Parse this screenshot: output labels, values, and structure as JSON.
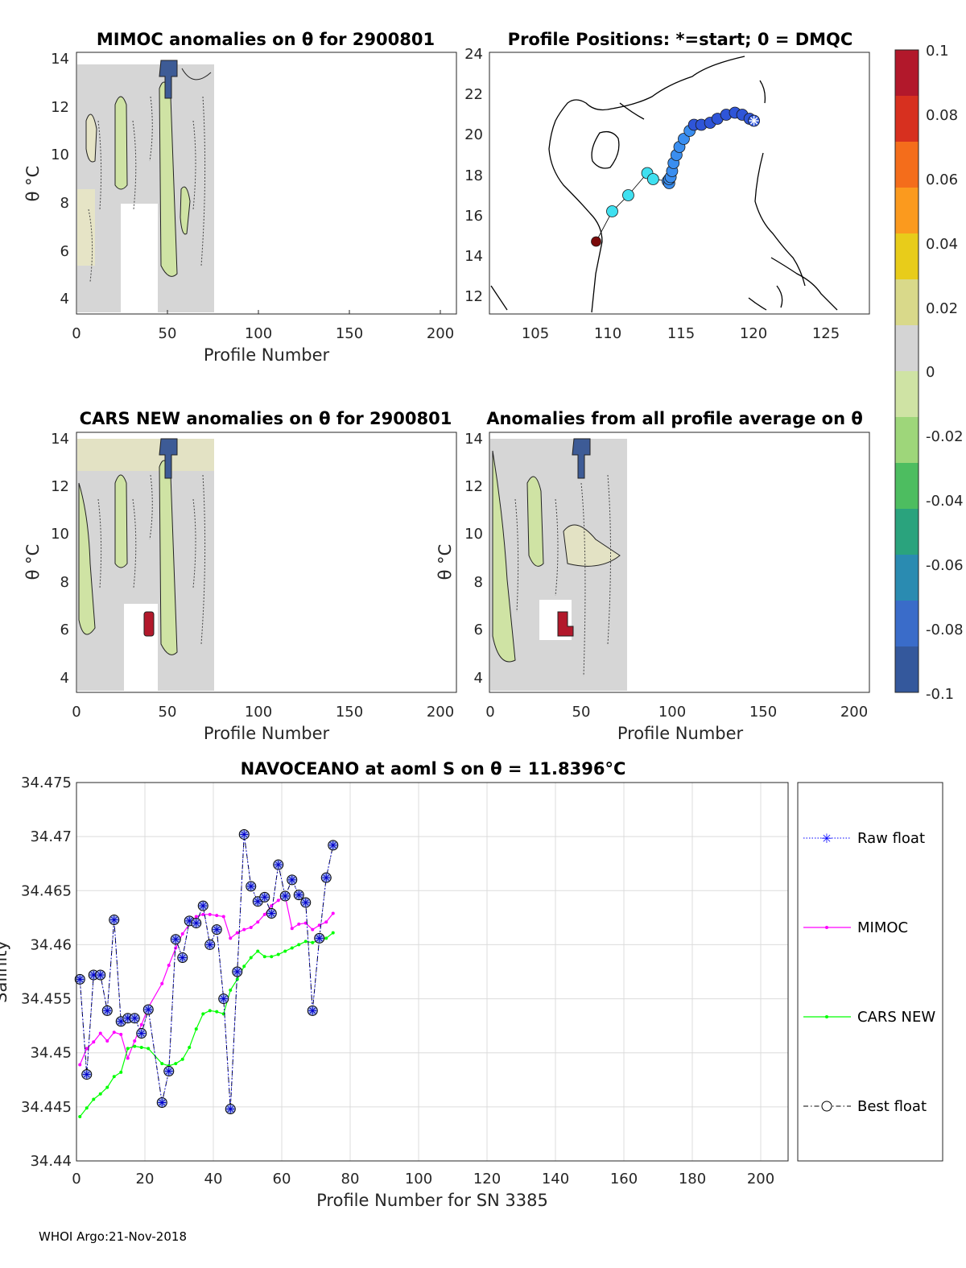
{
  "footer": "WHOI Argo:21-Nov-2018",
  "panels": {
    "mimoc": {
      "title": "MIMOC anomalies on θ  for 2900801",
      "xlabel": "Profile Number",
      "ylabel": "θ °C",
      "xticks": [
        "0",
        "50",
        "100",
        "150",
        "200"
      ],
      "yticks": [
        "4",
        "6",
        "8",
        "10",
        "12",
        "14"
      ]
    },
    "positions": {
      "title": "Profile Positions: *=start; 0 = DMQC",
      "xticks": [
        "105",
        "110",
        "115",
        "120",
        "125"
      ],
      "yticks": [
        "12",
        "14",
        "16",
        "18",
        "20",
        "22",
        "24"
      ]
    },
    "cars": {
      "title": "CARS NEW anomalies on θ for 2900801",
      "xlabel": "Profile Number",
      "ylabel": "θ °C",
      "xticks": [
        "0",
        "50",
        "100",
        "150",
        "200"
      ],
      "yticks": [
        "4",
        "6",
        "8",
        "10",
        "12",
        "14"
      ]
    },
    "avg": {
      "title": "Anomalies from all profile average on θ",
      "xlabel": "Profile Number",
      "ylabel": "θ °C",
      "xticks": [
        "0",
        "50",
        "100",
        "150",
        "200"
      ],
      "yticks": [
        "4",
        "6",
        "8",
        "10",
        "12",
        "14"
      ]
    },
    "colorbar": {
      "ticks": [
        "0.1",
        "0.08",
        "0.06",
        "0.04",
        "0.02",
        "0",
        "-0.02",
        "-0.04",
        "-0.06",
        "-0.08",
        "-0.1"
      ],
      "colors": [
        "#b2182b",
        "#d7301f",
        "#f46d1b",
        "#fb9a1e",
        "#e8cc1a",
        "#d9d98a",
        "#d4d4d4",
        "#cfe3a4",
        "#9ed67a",
        "#4dbd60",
        "#2aa37d",
        "#2a8bb1",
        "#3a6cc9",
        "#34589c"
      ]
    },
    "salinity": {
      "title": "NAVOCEANO at aoml S on θ = 11.8396°C",
      "xlabel": "Profile Number for SN 3385",
      "ylabel": "Salinity",
      "xticks": [
        "0",
        "20",
        "40",
        "60",
        "80",
        "100",
        "120",
        "140",
        "160",
        "180",
        "200"
      ],
      "yticks": [
        "34.44",
        "34.445",
        "34.45",
        "34.455",
        "34.46",
        "34.465",
        "34.47",
        "34.475"
      ]
    }
  },
  "legend": {
    "raw": "Raw float",
    "mimoc": "MIMOC",
    "cars": "CARS NEW",
    "best": "Best float"
  },
  "chart_data": [
    {
      "type": "line",
      "title": "NAVOCEANO at aoml S on θ = 11.8396°C",
      "xlabel": "Profile Number for SN 3385",
      "ylabel": "Salinity",
      "xlim": [
        0,
        208
      ],
      "ylim": [
        34.44,
        34.475
      ],
      "x": [
        1,
        3,
        5,
        7,
        9,
        11,
        13,
        15,
        17,
        19,
        21,
        25,
        27,
        29,
        31,
        33,
        35,
        37,
        39,
        41,
        43,
        45,
        47,
        49,
        51,
        53,
        55,
        57,
        59,
        61,
        63,
        65,
        67,
        69,
        71,
        73,
        75
      ],
      "series": [
        {
          "name": "Raw float",
          "color": "#0000ff",
          "values": [
            34.4568,
            34.448,
            34.4572,
            34.4572,
            34.4539,
            34.4623,
            34.4529,
            34.4532,
            34.4532,
            34.4518,
            34.454,
            34.4454,
            34.4483,
            34.4605,
            34.4588,
            34.4622,
            34.462,
            34.4636,
            34.46,
            34.4614,
            34.455,
            34.4448,
            34.4575,
            34.4702,
            34.4654,
            34.464,
            34.4644,
            34.4629,
            34.4674,
            34.4645,
            34.466,
            34.4646,
            34.4639,
            34.4539,
            34.4606,
            34.4662,
            34.4692
          ]
        },
        {
          "name": "MIMOC",
          "color": "#ff00ff",
          "values": [
            34.4489,
            34.4504,
            34.451,
            34.4518,
            34.4511,
            34.4519,
            34.4517,
            34.4495,
            34.4511,
            34.4526,
            34.4542,
            34.4564,
            34.4581,
            34.4597,
            34.461,
            34.4619,
            34.4626,
            34.4628,
            34.4628,
            34.4627,
            34.4626,
            34.4606,
            34.4611,
            34.4614,
            34.4616,
            34.4621,
            34.4628,
            34.4636,
            34.4641,
            34.4645,
            34.4615,
            34.4619,
            34.462,
            34.4614,
            34.4618,
            34.4621,
            34.4629
          ]
        },
        {
          "name": "CARS NEW",
          "color": "#00ff00",
          "values": [
            34.4441,
            34.4449,
            34.4457,
            34.4462,
            34.4468,
            34.4478,
            34.4482,
            34.4504,
            34.4506,
            34.4505,
            34.4504,
            34.449,
            34.4488,
            34.449,
            34.4494,
            34.4505,
            34.4522,
            34.4536,
            34.4539,
            34.4538,
            34.4536,
            34.4558,
            34.4568,
            34.458,
            34.4588,
            34.4594,
            34.4589,
            34.4589,
            34.4591,
            34.4594,
            34.4597,
            34.46,
            34.4603,
            34.4602,
            34.4604,
            34.4606,
            34.4611
          ]
        },
        {
          "name": "Best float",
          "color": "#000000",
          "values": [
            34.4568,
            34.448,
            34.4572,
            34.4572,
            34.4539,
            34.4623,
            34.4529,
            34.4532,
            34.4532,
            34.4518,
            34.454,
            34.4454,
            34.4483,
            34.4605,
            34.4588,
            34.4622,
            34.462,
            34.4636,
            34.46,
            34.4614,
            34.455,
            34.4448,
            34.4575,
            34.4702,
            34.4654,
            34.464,
            34.4644,
            34.4629,
            34.4674,
            34.4645,
            34.466,
            34.4646,
            34.4639,
            34.4539,
            34.4606,
            34.4662,
            34.4692
          ]
        }
      ]
    },
    {
      "type": "scatter",
      "title": "Profile Positions: *=start; 0 = DMQC",
      "xlim": [
        102,
        128
      ],
      "ylim": [
        11,
        24
      ],
      "series": [
        {
          "name": "track",
          "lon": [
            120.1,
            119.8,
            119.3,
            118.8,
            118.2,
            117.6,
            117.1,
            116.5,
            116.0,
            115.7,
            115.3,
            115.0,
            114.8,
            114.6,
            114.5,
            114.4,
            114.3,
            114.3,
            114.2,
            113.2,
            112.8,
            111.5,
            110.4,
            109.3
          ],
          "lat": [
            20.6,
            20.7,
            20.9,
            21.0,
            20.9,
            20.7,
            20.5,
            20.4,
            20.4,
            20.1,
            19.7,
            19.3,
            18.9,
            18.5,
            18.1,
            17.8,
            17.7,
            17.5,
            17.6,
            17.7,
            18.0,
            16.9,
            16.1,
            14.6
          ]
        }
      ]
    },
    {
      "type": "heatmap",
      "title": "MIMOC anomalies on θ  for 2900801",
      "xlim": [
        0,
        210
      ],
      "ylim": [
        3.4,
        14.2
      ],
      "clim": [
        -0.1,
        0.1
      ]
    },
    {
      "type": "heatmap",
      "title": "CARS NEW anomalies on θ for 2900801",
      "xlim": [
        0,
        210
      ],
      "ylim": [
        3.4,
        14.2
      ],
      "clim": [
        -0.1,
        0.1
      ]
    },
    {
      "type": "heatmap",
      "title": "Anomalies from all profile average on θ",
      "xlim": [
        0,
        210
      ],
      "ylim": [
        3.4,
        14.2
      ],
      "clim": [
        -0.1,
        0.1
      ]
    }
  ]
}
